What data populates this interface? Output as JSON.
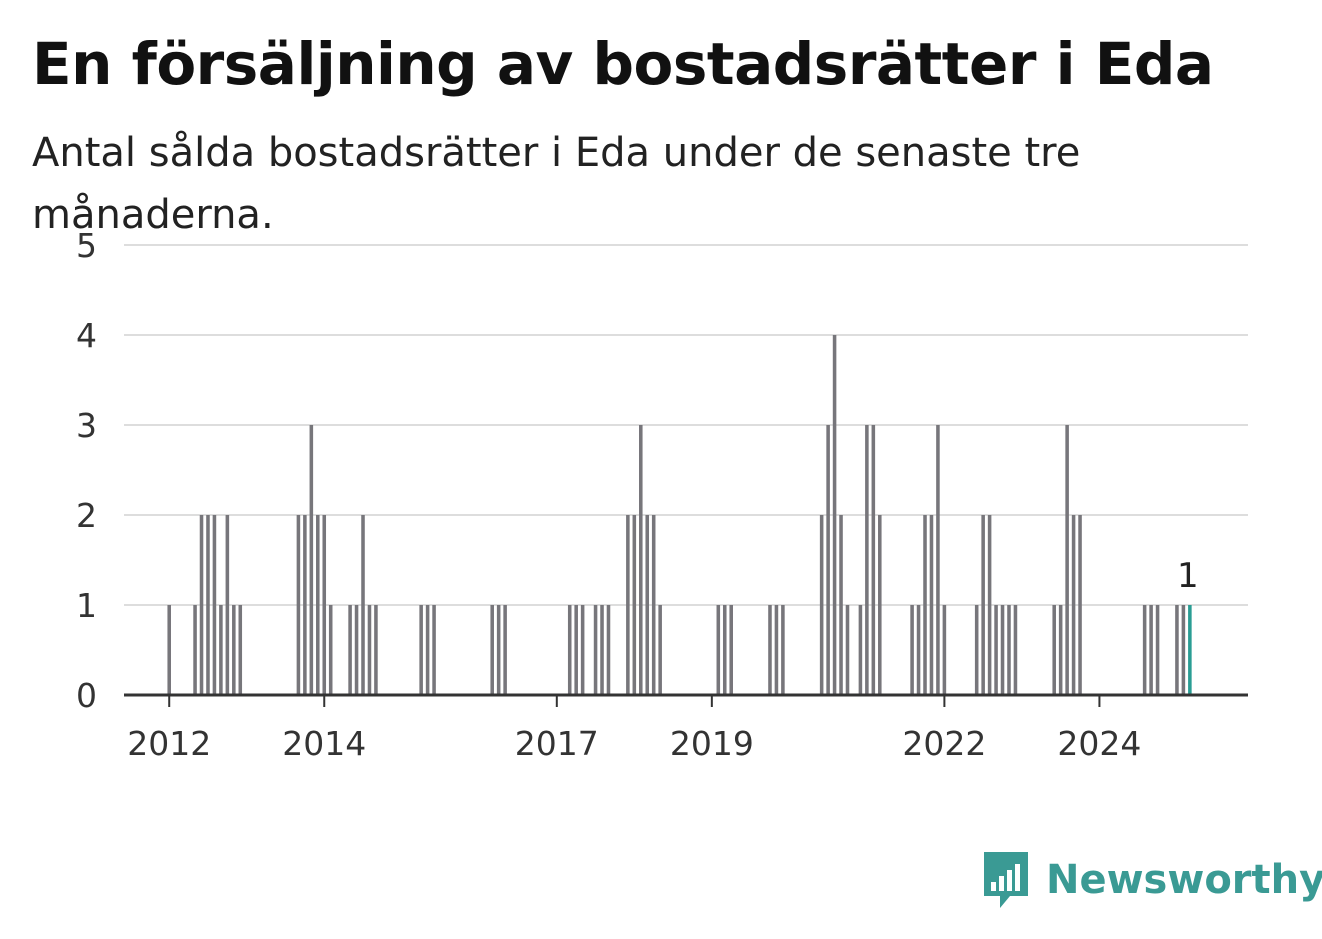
{
  "header": {
    "title": "En försäljning av bostadsrätter i Eda",
    "subtitle": "Antal sålda bostadsrätter i Eda under de senaste tre månaderna."
  },
  "brand": {
    "name": "Newsworthy",
    "color": "#3a9a94",
    "icon": "newsworthy-logo-icon"
  },
  "chart_data": {
    "type": "bar",
    "title": "En försäljning av bostadsrätter i Eda",
    "subtitle": "Antal sålda bostadsrätter i Eda under de senaste tre månaderna.",
    "x_unit": "month",
    "x_range": [
      "2011-06",
      "2025-12"
    ],
    "ylim": [
      0,
      5
    ],
    "y_ticks": [
      0,
      1,
      2,
      3,
      4,
      5
    ],
    "x_ticks": [
      "2012",
      "2014",
      "2017",
      "2019",
      "2022",
      "2024"
    ],
    "grid": true,
    "bar_color": "#77767b",
    "highlight_color": "#2a9d94",
    "highlight_label": "1",
    "data": [
      {
        "x": "2012-01",
        "y": 1
      },
      {
        "x": "2012-05",
        "y": 1
      },
      {
        "x": "2012-06",
        "y": 2
      },
      {
        "x": "2012-07",
        "y": 2
      },
      {
        "x": "2012-08",
        "y": 2
      },
      {
        "x": "2012-09",
        "y": 1
      },
      {
        "x": "2012-10",
        "y": 2
      },
      {
        "x": "2012-11",
        "y": 1
      },
      {
        "x": "2012-12",
        "y": 1
      },
      {
        "x": "2013-09",
        "y": 2
      },
      {
        "x": "2013-10",
        "y": 2
      },
      {
        "x": "2013-11",
        "y": 3
      },
      {
        "x": "2013-12",
        "y": 2
      },
      {
        "x": "2014-01",
        "y": 2
      },
      {
        "x": "2014-02",
        "y": 1
      },
      {
        "x": "2014-05",
        "y": 1
      },
      {
        "x": "2014-06",
        "y": 1
      },
      {
        "x": "2014-07",
        "y": 2
      },
      {
        "x": "2014-08",
        "y": 1
      },
      {
        "x": "2014-09",
        "y": 1
      },
      {
        "x": "2015-04",
        "y": 1
      },
      {
        "x": "2015-05",
        "y": 1
      },
      {
        "x": "2015-06",
        "y": 1
      },
      {
        "x": "2016-03",
        "y": 1
      },
      {
        "x": "2016-04",
        "y": 1
      },
      {
        "x": "2016-05",
        "y": 1
      },
      {
        "x": "2017-03",
        "y": 1
      },
      {
        "x": "2017-04",
        "y": 1
      },
      {
        "x": "2017-05",
        "y": 1
      },
      {
        "x": "2017-07",
        "y": 1
      },
      {
        "x": "2017-08",
        "y": 1
      },
      {
        "x": "2017-09",
        "y": 1
      },
      {
        "x": "2017-12",
        "y": 2
      },
      {
        "x": "2018-01",
        "y": 2
      },
      {
        "x": "2018-02",
        "y": 3
      },
      {
        "x": "2018-03",
        "y": 2
      },
      {
        "x": "2018-04",
        "y": 2
      },
      {
        "x": "2018-05",
        "y": 1
      },
      {
        "x": "2019-02",
        "y": 1
      },
      {
        "x": "2019-03",
        "y": 1
      },
      {
        "x": "2019-04",
        "y": 1
      },
      {
        "x": "2019-10",
        "y": 1
      },
      {
        "x": "2019-11",
        "y": 1
      },
      {
        "x": "2019-12",
        "y": 1
      },
      {
        "x": "2020-06",
        "y": 2
      },
      {
        "x": "2020-07",
        "y": 3
      },
      {
        "x": "2020-08",
        "y": 4
      },
      {
        "x": "2020-09",
        "y": 2
      },
      {
        "x": "2020-10",
        "y": 1
      },
      {
        "x": "2020-12",
        "y": 1
      },
      {
        "x": "2021-01",
        "y": 3
      },
      {
        "x": "2021-02",
        "y": 3
      },
      {
        "x": "2021-03",
        "y": 2
      },
      {
        "x": "2021-08",
        "y": 1
      },
      {
        "x": "2021-09",
        "y": 1
      },
      {
        "x": "2021-10",
        "y": 2
      },
      {
        "x": "2021-11",
        "y": 2
      },
      {
        "x": "2021-12",
        "y": 3
      },
      {
        "x": "2022-01",
        "y": 1
      },
      {
        "x": "2022-06",
        "y": 1
      },
      {
        "x": "2022-07",
        "y": 2
      },
      {
        "x": "2022-08",
        "y": 2
      },
      {
        "x": "2022-09",
        "y": 1
      },
      {
        "x": "2022-10",
        "y": 1
      },
      {
        "x": "2022-11",
        "y": 1
      },
      {
        "x": "2022-12",
        "y": 1
      },
      {
        "x": "2023-06",
        "y": 1
      },
      {
        "x": "2023-07",
        "y": 1
      },
      {
        "x": "2023-08",
        "y": 3
      },
      {
        "x": "2023-09",
        "y": 2
      },
      {
        "x": "2023-10",
        "y": 2
      },
      {
        "x": "2024-08",
        "y": 1
      },
      {
        "x": "2024-09",
        "y": 1
      },
      {
        "x": "2024-10",
        "y": 1
      },
      {
        "x": "2025-01",
        "y": 1
      },
      {
        "x": "2025-02",
        "y": 1
      },
      {
        "x": "2025-03",
        "y": 1,
        "highlight": true
      }
    ]
  }
}
